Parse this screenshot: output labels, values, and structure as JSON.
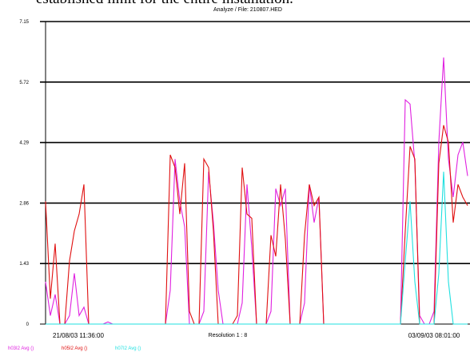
{
  "header_text": "established limit for the entire installation.",
  "chart_data": {
    "type": "line",
    "title": "Analyze  /  File: 210807.HED",
    "x_start_label": "21/08/03  11:36:00",
    "x_end_label": "03/09/03  08:01:00",
    "resolution_label": "Resolution  1 : 8",
    "ylim": [
      0,
      7.15
    ],
    "yticks": [
      0,
      1.43,
      2.86,
      4.29,
      5.72,
      7.15
    ],
    "grid": true,
    "series": [
      {
        "name": "h03I2 Avg ()",
        "color": "#e020e0",
        "values": [
          1.0,
          0.2,
          0.7,
          0,
          0,
          0.2,
          1.2,
          0.2,
          0.4,
          0,
          0,
          0,
          0,
          0.05,
          0,
          0,
          0,
          0,
          0,
          0,
          0,
          0,
          0,
          0,
          0,
          0,
          0.8,
          3.9,
          2.9,
          2.3,
          0,
          0,
          0,
          0.3,
          3.6,
          2.4,
          0.8,
          0,
          0,
          0,
          0,
          0.5,
          3.3,
          1.8,
          0,
          0,
          0,
          0.3,
          3.2,
          2.8,
          3.2,
          0,
          0,
          0,
          0.5,
          3.3,
          2.4,
          3.0,
          0,
          0,
          0,
          0,
          0,
          0,
          0,
          0,
          0,
          0,
          0,
          0,
          0,
          0,
          0,
          0,
          0,
          5.3,
          5.2,
          3.8,
          0.2,
          0,
          0,
          0.3,
          4.3,
          6.3,
          3.9,
          3.0,
          4.0,
          4.3,
          3.5
        ]
      },
      {
        "name": "h05I2 Avg ()",
        "color": "#e01010",
        "values": [
          2.9,
          0.6,
          1.9,
          0,
          0,
          1.5,
          2.2,
          2.6,
          3.3,
          0,
          0,
          0,
          0,
          0,
          0,
          0,
          0,
          0,
          0,
          0,
          0,
          0,
          0,
          0,
          0,
          0,
          4.0,
          3.7,
          2.6,
          3.8,
          0.3,
          0,
          0,
          3.9,
          3.7,
          2.2,
          0,
          0,
          0,
          0,
          0.2,
          3.7,
          2.6,
          2.5,
          0,
          0,
          0,
          2.1,
          1.6,
          3.3,
          2.0,
          0,
          0,
          0,
          2.1,
          3.3,
          2.8,
          3.0,
          0,
          0,
          0,
          0,
          0,
          0,
          0,
          0,
          0,
          0,
          0,
          0,
          0,
          0,
          0,
          0,
          0,
          2.2,
          4.2,
          3.9,
          0,
          0,
          0,
          0,
          3.8,
          4.7,
          4.3,
          2.4,
          3.3,
          3.0,
          2.8
        ]
      },
      {
        "name": "h07I2 Avg ()",
        "color": "#20e0e0",
        "values": [
          0,
          0,
          0,
          0,
          0,
          0,
          0,
          0,
          0,
          0,
          0,
          0,
          0,
          0,
          0,
          0,
          0,
          0,
          0,
          0,
          0,
          0,
          0,
          0,
          0,
          0,
          0,
          0,
          0,
          0,
          0,
          0,
          0,
          0,
          0,
          0,
          0,
          0,
          0,
          0,
          0,
          0,
          0,
          0,
          0,
          0,
          0,
          0,
          0,
          0,
          0,
          0,
          0,
          0,
          0,
          0,
          0,
          0,
          0,
          0,
          0,
          0,
          0,
          0,
          0,
          0,
          0,
          0,
          0,
          0,
          0,
          0,
          0,
          0,
          0,
          1.5,
          2.9,
          1.0,
          0,
          0,
          0,
          0,
          1.2,
          3.6,
          1.0,
          0,
          0,
          0,
          0
        ]
      }
    ]
  }
}
